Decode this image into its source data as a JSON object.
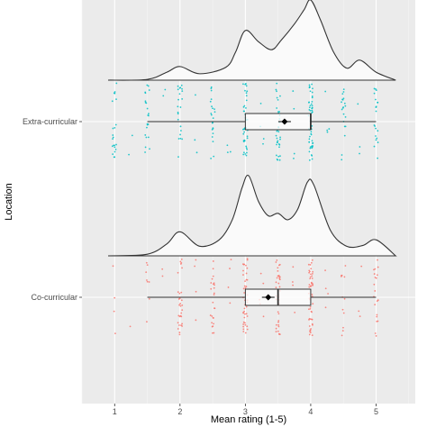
{
  "chart_data": {
    "type": "raincloud",
    "xlabel": "Mean rating (1-5)",
    "ylabel": "Location",
    "x_ticks": [
      1,
      2,
      3,
      4,
      5
    ],
    "xlim": [
      0.5,
      5.6
    ],
    "grid": true,
    "groups": [
      {
        "name": "Extra-curricular",
        "point_color": "#00BFC4",
        "box": {
          "q1": 3.0,
          "median": 4.0,
          "q3": 4.0,
          "whisker_low": 1.5,
          "whisker_high": 5.0
        },
        "mean": 3.6,
        "density": [
          [
            0.9,
            0.0
          ],
          [
            1.5,
            0.01
          ],
          [
            1.8,
            0.1
          ],
          [
            2.0,
            0.17
          ],
          [
            2.3,
            0.08
          ],
          [
            2.7,
            0.16
          ],
          [
            2.85,
            0.35
          ],
          [
            3.0,
            0.62
          ],
          [
            3.2,
            0.48
          ],
          [
            3.4,
            0.38
          ],
          [
            3.55,
            0.5
          ],
          [
            3.75,
            0.7
          ],
          [
            3.9,
            0.88
          ],
          [
            4.0,
            1.0
          ],
          [
            4.15,
            0.75
          ],
          [
            4.35,
            0.35
          ],
          [
            4.55,
            0.15
          ],
          [
            4.75,
            0.25
          ],
          [
            5.0,
            0.1
          ],
          [
            5.3,
            0.0
          ]
        ],
        "points": [
          [
            1.0,
            20
          ],
          [
            1.0,
            2
          ],
          [
            1.5,
            20
          ],
          [
            1.5,
            2
          ],
          [
            2.0,
            20
          ],
          [
            2.0,
            2
          ],
          [
            2.5,
            20
          ],
          [
            2.5,
            2
          ],
          [
            3.0,
            40
          ],
          [
            3.5,
            35
          ],
          [
            4.0,
            55
          ],
          [
            4.5,
            20
          ],
          [
            5.0,
            20
          ],
          [
            4.75,
            3
          ],
          [
            4.25,
            4
          ],
          [
            3.75,
            4
          ],
          [
            3.25,
            4
          ],
          [
            2.75,
            3
          ],
          [
            2.25,
            3
          ],
          [
            1.75,
            2
          ],
          [
            1.25,
            2
          ]
        ]
      },
      {
        "name": "Co-curricular",
        "point_color": "#F8766D",
        "box": {
          "q1": 3.0,
          "median": 3.5,
          "q3": 4.0,
          "whisker_low": 1.5,
          "whisker_high": 5.0
        },
        "mean": 3.35,
        "density": [
          [
            0.9,
            0.0
          ],
          [
            1.5,
            0.02
          ],
          [
            1.8,
            0.15
          ],
          [
            2.0,
            0.3
          ],
          [
            2.3,
            0.12
          ],
          [
            2.6,
            0.2
          ],
          [
            2.8,
            0.45
          ],
          [
            2.95,
            0.85
          ],
          [
            3.05,
            1.0
          ],
          [
            3.2,
            0.68
          ],
          [
            3.35,
            0.5
          ],
          [
            3.5,
            0.53
          ],
          [
            3.65,
            0.45
          ],
          [
            3.8,
            0.58
          ],
          [
            3.95,
            0.92
          ],
          [
            4.05,
            0.88
          ],
          [
            4.3,
            0.32
          ],
          [
            4.55,
            0.12
          ],
          [
            4.8,
            0.13
          ],
          [
            5.0,
            0.2
          ],
          [
            5.3,
            0.0
          ]
        ],
        "points": [
          [
            1.0,
            4
          ],
          [
            1.5,
            8
          ],
          [
            2.0,
            30
          ],
          [
            2.5,
            25
          ],
          [
            3.0,
            45
          ],
          [
            3.5,
            40
          ],
          [
            4.0,
            50
          ],
          [
            4.5,
            12
          ],
          [
            5.0,
            20
          ],
          [
            4.75,
            3
          ],
          [
            4.25,
            4
          ],
          [
            3.75,
            4
          ],
          [
            3.25,
            5
          ],
          [
            2.75,
            4
          ],
          [
            2.25,
            4
          ],
          [
            1.75,
            2
          ],
          [
            1.25,
            1
          ]
        ]
      }
    ]
  }
}
